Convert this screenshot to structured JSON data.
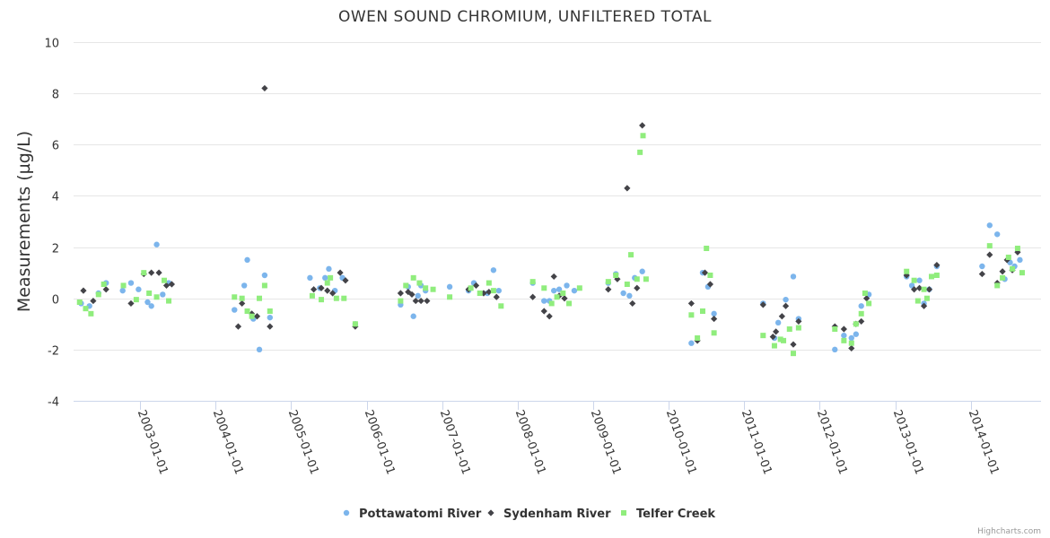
{
  "chart_data": {
    "type": "scatter",
    "title": "OWEN SOUND CHROMIUM, UNFILTERED TOTAL",
    "xlabel": "",
    "ylabel": "Measurements (µg/L)",
    "ylim": [
      -4,
      10
    ],
    "yticks": [
      -4,
      -2,
      0,
      2,
      4,
      6,
      8,
      10
    ],
    "xlim": [
      2002.12,
      2014.93
    ],
    "xticks": [
      {
        "label": "2003-01-01",
        "value": 2003.0
      },
      {
        "label": "2004-01-01",
        "value": 2004.0
      },
      {
        "label": "2005-01-01",
        "value": 2005.0
      },
      {
        "label": "2006-01-01",
        "value": 2006.0
      },
      {
        "label": "2007-01-01",
        "value": 2007.0
      },
      {
        "label": "2008-01-01",
        "value": 2008.0
      },
      {
        "label": "2009-01-01",
        "value": 2009.0
      },
      {
        "label": "2010-01-01",
        "value": 2010.0
      },
      {
        "label": "2011-01-01",
        "value": 2011.0
      },
      {
        "label": "2012-01-01",
        "value": 2012.0
      },
      {
        "label": "2013-01-01",
        "value": 2013.0
      },
      {
        "label": "2014-01-01",
        "value": 2014.0
      }
    ],
    "series": [
      {
        "name": "Pottawatomi River",
        "marker": "circle",
        "color": "#7cb5ec",
        "points": [
          [
            2002.22,
            -0.2
          ],
          [
            2002.33,
            -0.3
          ],
          [
            2002.45,
            0.2
          ],
          [
            2002.55,
            0.6
          ],
          [
            2002.77,
            0.3
          ],
          [
            2002.88,
            0.6
          ],
          [
            2002.98,
            0.35
          ],
          [
            2003.1,
            -0.15
          ],
          [
            2003.15,
            -0.3
          ],
          [
            2003.22,
            2.1
          ],
          [
            2003.3,
            0.15
          ],
          [
            2003.38,
            0.6
          ],
          [
            2004.25,
            -0.45
          ],
          [
            2004.38,
            0.5
          ],
          [
            2004.42,
            1.5
          ],
          [
            2004.5,
            -0.8
          ],
          [
            2004.58,
            -2.0
          ],
          [
            2004.65,
            0.9
          ],
          [
            2004.72,
            -0.75
          ],
          [
            2005.25,
            0.8
          ],
          [
            2005.38,
            0.4
          ],
          [
            2005.45,
            0.8
          ],
          [
            2005.5,
            1.15
          ],
          [
            2005.58,
            0.3
          ],
          [
            2005.68,
            0.8
          ],
          [
            2005.85,
            -1.0
          ],
          [
            2006.45,
            -0.25
          ],
          [
            2006.55,
            0.45
          ],
          [
            2006.62,
            -0.7
          ],
          [
            2006.68,
            0.1
          ],
          [
            2006.72,
            0.5
          ],
          [
            2006.78,
            0.3
          ],
          [
            2007.1,
            0.45
          ],
          [
            2007.35,
            0.3
          ],
          [
            2007.42,
            0.6
          ],
          [
            2007.6,
            0.2
          ],
          [
            2007.68,
            1.1
          ],
          [
            2007.75,
            0.3
          ],
          [
            2008.2,
            0.6
          ],
          [
            2008.35,
            -0.1
          ],
          [
            2008.42,
            -0.1
          ],
          [
            2008.48,
            0.3
          ],
          [
            2008.55,
            0.35
          ],
          [
            2008.65,
            0.5
          ],
          [
            2008.75,
            0.3
          ],
          [
            2009.2,
            0.6
          ],
          [
            2009.3,
            0.95
          ],
          [
            2009.4,
            0.2
          ],
          [
            2009.48,
            0.1
          ],
          [
            2009.55,
            0.8
          ],
          [
            2009.65,
            1.05
          ],
          [
            2010.3,
            -1.75
          ],
          [
            2010.45,
            1.0
          ],
          [
            2010.52,
            0.45
          ],
          [
            2010.6,
            -0.6
          ],
          [
            2011.25,
            -0.2
          ],
          [
            2011.4,
            -1.55
          ],
          [
            2011.45,
            -0.95
          ],
          [
            2011.55,
            -0.05
          ],
          [
            2011.65,
            0.85
          ],
          [
            2011.72,
            -0.8
          ],
          [
            2012.2,
            -2.0
          ],
          [
            2012.32,
            -1.45
          ],
          [
            2012.42,
            -1.55
          ],
          [
            2012.48,
            -1.4
          ],
          [
            2012.55,
            -0.3
          ],
          [
            2012.65,
            0.15
          ],
          [
            2013.15,
            0.85
          ],
          [
            2013.22,
            0.5
          ],
          [
            2013.32,
            0.7
          ],
          [
            2013.38,
            -0.2
          ],
          [
            2013.45,
            0.35
          ],
          [
            2013.55,
            1.25
          ],
          [
            2014.15,
            1.25
          ],
          [
            2014.25,
            2.85
          ],
          [
            2014.35,
            2.5
          ],
          [
            2014.45,
            0.75
          ],
          [
            2014.52,
            1.4
          ],
          [
            2014.58,
            1.25
          ],
          [
            2014.65,
            1.5
          ]
        ]
      },
      {
        "name": "Sydenham River",
        "marker": "diamond",
        "color": "#434348",
        "points": [
          [
            2002.25,
            0.3
          ],
          [
            2002.38,
            -0.1
          ],
          [
            2002.55,
            0.35
          ],
          [
            2002.88,
            -0.2
          ],
          [
            2003.05,
            0.95
          ],
          [
            2003.15,
            1.0
          ],
          [
            2003.25,
            1.0
          ],
          [
            2003.35,
            0.5
          ],
          [
            2003.42,
            0.55
          ],
          [
            2004.3,
            -1.1
          ],
          [
            2004.35,
            -0.2
          ],
          [
            2004.48,
            -0.6
          ],
          [
            2004.55,
            -0.7
          ],
          [
            2004.65,
            8.2
          ],
          [
            2004.72,
            -1.1
          ],
          [
            2005.3,
            0.35
          ],
          [
            2005.4,
            0.4
          ],
          [
            2005.48,
            0.3
          ],
          [
            2005.55,
            0.2
          ],
          [
            2005.65,
            1.0
          ],
          [
            2005.72,
            0.7
          ],
          [
            2005.85,
            -1.1
          ],
          [
            2006.45,
            0.2
          ],
          [
            2006.55,
            0.25
          ],
          [
            2006.6,
            0.15
          ],
          [
            2006.65,
            -0.1
          ],
          [
            2006.72,
            -0.1
          ],
          [
            2006.8,
            -0.1
          ],
          [
            2007.35,
            0.35
          ],
          [
            2007.45,
            0.5
          ],
          [
            2007.55,
            0.2
          ],
          [
            2007.62,
            0.25
          ],
          [
            2007.72,
            0.05
          ],
          [
            2008.2,
            0.05
          ],
          [
            2008.35,
            -0.5
          ],
          [
            2008.42,
            -0.7
          ],
          [
            2008.48,
            0.85
          ],
          [
            2008.55,
            0.1
          ],
          [
            2008.62,
            0.0
          ],
          [
            2009.2,
            0.35
          ],
          [
            2009.32,
            0.75
          ],
          [
            2009.45,
            4.3
          ],
          [
            2009.52,
            -0.2
          ],
          [
            2009.58,
            0.4
          ],
          [
            2009.65,
            6.75
          ],
          [
            2010.3,
            -0.2
          ],
          [
            2010.38,
            -1.65
          ],
          [
            2010.48,
            1.0
          ],
          [
            2010.55,
            0.55
          ],
          [
            2010.6,
            -0.8
          ],
          [
            2011.25,
            -0.25
          ],
          [
            2011.38,
            -1.5
          ],
          [
            2011.42,
            -1.3
          ],
          [
            2011.5,
            -0.7
          ],
          [
            2011.55,
            -0.3
          ],
          [
            2011.65,
            -1.8
          ],
          [
            2011.72,
            -0.9
          ],
          [
            2012.2,
            -1.1
          ],
          [
            2012.32,
            -1.2
          ],
          [
            2012.42,
            -1.95
          ],
          [
            2012.48,
            -1.0
          ],
          [
            2012.55,
            -0.9
          ],
          [
            2012.62,
            0.0
          ],
          [
            2013.15,
            0.9
          ],
          [
            2013.25,
            0.35
          ],
          [
            2013.32,
            0.4
          ],
          [
            2013.38,
            -0.3
          ],
          [
            2013.45,
            0.35
          ],
          [
            2013.55,
            1.3
          ],
          [
            2014.15,
            0.95
          ],
          [
            2014.25,
            1.7
          ],
          [
            2014.35,
            0.6
          ],
          [
            2014.42,
            1.05
          ],
          [
            2014.48,
            1.5
          ],
          [
            2014.55,
            1.1
          ],
          [
            2014.62,
            1.8
          ]
        ]
      },
      {
        "name": "Telfer Creek",
        "marker": "square",
        "color": "#90ed7d",
        "points": [
          [
            2002.2,
            -0.15
          ],
          [
            2002.28,
            -0.4
          ],
          [
            2002.35,
            -0.6
          ],
          [
            2002.45,
            0.15
          ],
          [
            2002.52,
            0.55
          ],
          [
            2002.78,
            0.5
          ],
          [
            2002.95,
            -0.05
          ],
          [
            2003.05,
            1.0
          ],
          [
            2003.12,
            0.2
          ],
          [
            2003.22,
            0.05
          ],
          [
            2003.32,
            0.7
          ],
          [
            2003.38,
            -0.1
          ],
          [
            2004.25,
            0.05
          ],
          [
            2004.35,
            0.0
          ],
          [
            2004.42,
            -0.5
          ],
          [
            2004.48,
            -0.7
          ],
          [
            2004.58,
            0.0
          ],
          [
            2004.65,
            0.5
          ],
          [
            2004.72,
            -0.5
          ],
          [
            2005.28,
            0.1
          ],
          [
            2005.4,
            -0.05
          ],
          [
            2005.48,
            0.6
          ],
          [
            2005.52,
            0.8
          ],
          [
            2005.6,
            0.0
          ],
          [
            2005.7,
            0.0
          ],
          [
            2005.85,
            -1.0
          ],
          [
            2006.45,
            -0.1
          ],
          [
            2006.52,
            0.5
          ],
          [
            2006.62,
            0.8
          ],
          [
            2006.7,
            0.6
          ],
          [
            2006.78,
            0.4
          ],
          [
            2006.88,
            0.35
          ],
          [
            2007.1,
            0.05
          ],
          [
            2007.38,
            0.4
          ],
          [
            2007.5,
            0.2
          ],
          [
            2007.62,
            0.6
          ],
          [
            2007.68,
            0.3
          ],
          [
            2007.78,
            -0.3
          ],
          [
            2008.2,
            0.65
          ],
          [
            2008.35,
            0.4
          ],
          [
            2008.45,
            -0.2
          ],
          [
            2008.52,
            0.05
          ],
          [
            2008.6,
            0.2
          ],
          [
            2008.68,
            -0.2
          ],
          [
            2008.82,
            0.4
          ],
          [
            2009.2,
            0.65
          ],
          [
            2009.3,
            0.9
          ],
          [
            2009.45,
            0.55
          ],
          [
            2009.5,
            1.7
          ],
          [
            2009.58,
            0.75
          ],
          [
            2009.62,
            5.7
          ],
          [
            2009.66,
            6.35
          ],
          [
            2009.7,
            0.75
          ],
          [
            2010.3,
            -0.65
          ],
          [
            2010.38,
            -1.55
          ],
          [
            2010.45,
            -0.5
          ],
          [
            2010.5,
            1.95
          ],
          [
            2010.55,
            0.9
          ],
          [
            2010.6,
            -1.35
          ],
          [
            2011.25,
            -1.45
          ],
          [
            2011.4,
            -1.85
          ],
          [
            2011.48,
            -1.6
          ],
          [
            2011.52,
            -1.65
          ],
          [
            2011.6,
            -1.2
          ],
          [
            2011.65,
            -2.15
          ],
          [
            2011.72,
            -1.15
          ],
          [
            2012.2,
            -1.2
          ],
          [
            2012.32,
            -1.65
          ],
          [
            2012.42,
            -1.75
          ],
          [
            2012.48,
            -1.0
          ],
          [
            2012.55,
            -0.6
          ],
          [
            2012.6,
            0.2
          ],
          [
            2012.65,
            -0.2
          ],
          [
            2013.15,
            1.05
          ],
          [
            2013.25,
            0.7
          ],
          [
            2013.3,
            -0.1
          ],
          [
            2013.38,
            0.35
          ],
          [
            2013.42,
            0.0
          ],
          [
            2013.48,
            0.85
          ],
          [
            2013.55,
            0.9
          ],
          [
            2014.25,
            2.05
          ],
          [
            2014.35,
            0.5
          ],
          [
            2014.42,
            0.8
          ],
          [
            2014.5,
            1.6
          ],
          [
            2014.55,
            1.15
          ],
          [
            2014.62,
            1.95
          ],
          [
            2014.68,
            1.0
          ]
        ]
      }
    ],
    "legend": "bottom-center",
    "credits": "Highcharts.com"
  }
}
